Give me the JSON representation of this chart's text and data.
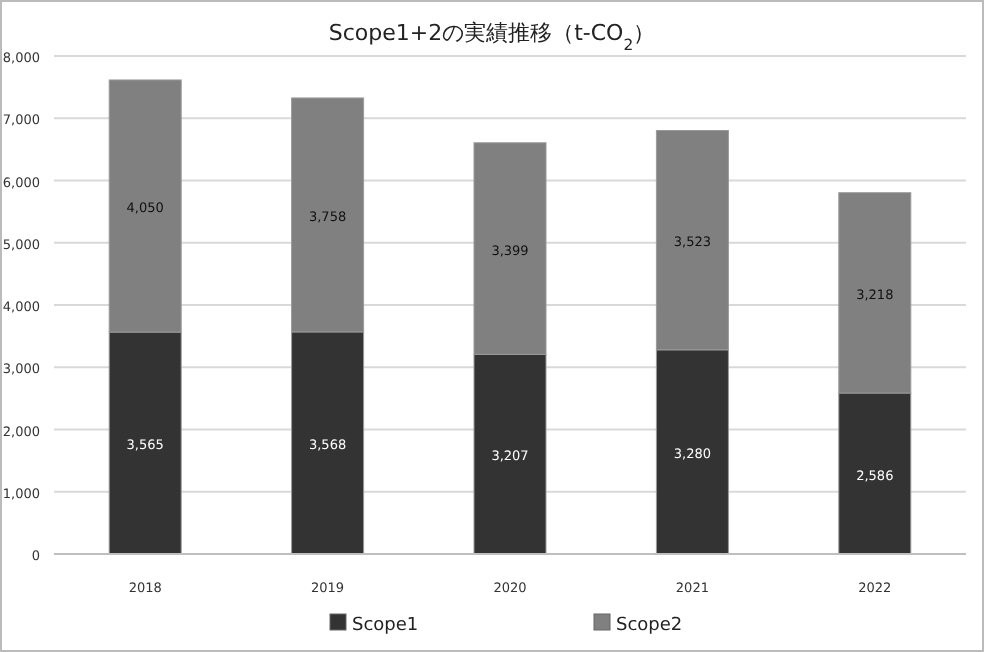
{
  "chart_data": {
    "type": "bar",
    "stacked": true,
    "title": "Scope1+2の実績推移（t-CO$_{2}$）",
    "categories": [
      "2018",
      "2019",
      "2020",
      "2021",
      "2022"
    ],
    "series": [
      {
        "name": "Scope1",
        "color": "#333333",
        "values": [
          3565,
          3568,
          3207,
          3280,
          2586
        ],
        "value_labels": [
          "3,565",
          "3,568",
          "3,207",
          "3,280",
          "2,586"
        ]
      },
      {
        "name": "Scope2",
        "color": "#808080",
        "values": [
          4050,
          3758,
          3399,
          3523,
          3218
        ],
        "value_labels": [
          "4,050",
          "3,758",
          "3,399",
          "3,523",
          "3,218"
        ]
      }
    ],
    "ylim": [
      0,
      8000
    ],
    "yticks": [
      {
        "value": 0,
        "label": "0"
      },
      {
        "value": 1000,
        "label": "1,000"
      },
      {
        "value": 2000,
        "label": "2,000"
      },
      {
        "value": 3000,
        "label": "3,000"
      },
      {
        "value": 4000,
        "label": "4,000"
      },
      {
        "value": 5000,
        "label": "5,000"
      },
      {
        "value": 6000,
        "label": "6,000"
      },
      {
        "value": 7000,
        "label": "7,000"
      },
      {
        "value": 8000,
        "label": "8,000"
      }
    ],
    "grid": "y",
    "legend": "bottom"
  }
}
